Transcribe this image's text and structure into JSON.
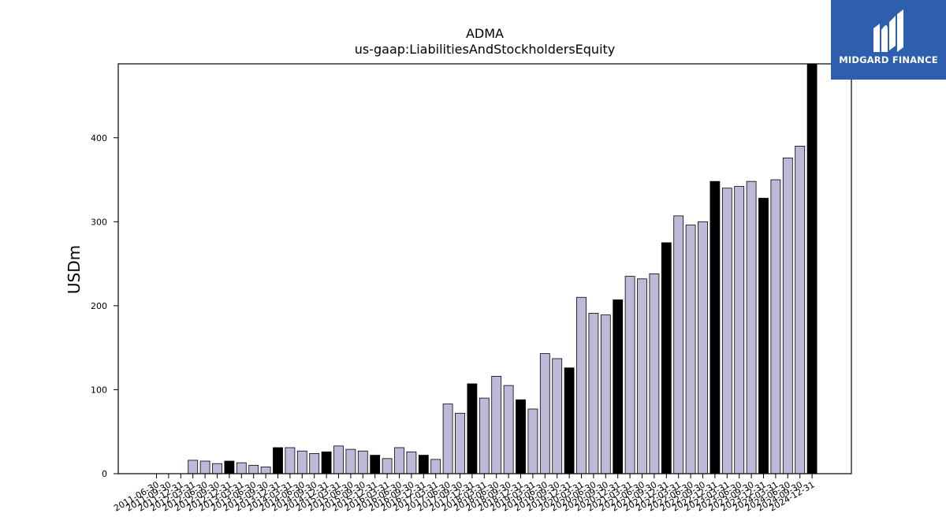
{
  "chart_data": {
    "type": "bar",
    "title": "ADMA",
    "subtitle": "us-gaap:LiabilitiesAndStockholdersEquity",
    "ylabel": "USDm",
    "xlabel": "",
    "ylim": [
      0,
      488
    ],
    "yticks": [
      0,
      100,
      200,
      300,
      400
    ],
    "grid": false,
    "legend": "none",
    "colors": {
      "bar": "#bcbad9",
      "highlight": "#000000",
      "edge": "#000000"
    },
    "categories": [
      "2011-06-30",
      "2011-09-30",
      "2011-12-31",
      "2012-03-31",
      "2012-06-30",
      "2012-09-30",
      "2012-12-31",
      "2013-03-31",
      "2013-06-30",
      "2013-09-30",
      "2013-12-31",
      "2014-03-31",
      "2014-06-30",
      "2014-09-30",
      "2014-12-31",
      "2015-03-31",
      "2015-06-30",
      "2015-09-30",
      "2015-12-31",
      "2016-03-31",
      "2016-06-30",
      "2016-09-30",
      "2016-12-31",
      "2017-03-31",
      "2017-06-30",
      "2017-09-30",
      "2017-12-31",
      "2018-03-31",
      "2018-06-30",
      "2018-09-30",
      "2018-12-31",
      "2019-03-31",
      "2019-06-30",
      "2019-09-30",
      "2019-12-31",
      "2020-03-31",
      "2020-06-30",
      "2020-09-30",
      "2020-12-31",
      "2021-03-31",
      "2021-06-30",
      "2021-09-30",
      "2021-12-31",
      "2022-03-31",
      "2022-06-30",
      "2022-09-30",
      "2022-12-31",
      "2023-03-31",
      "2023-06-30",
      "2023-09-30",
      "2023-12-31",
      "2024-03-31",
      "2024-06-30",
      "2024-09-30",
      "2024-12-31"
    ],
    "values": [
      0,
      0,
      0,
      16,
      15,
      12,
      15,
      13,
      10,
      8,
      31,
      31,
      27,
      24,
      26,
      33,
      29,
      27,
      22,
      18,
      31,
      26,
      22,
      17,
      83,
      72,
      107,
      90,
      116,
      105,
      88,
      77,
      143,
      137,
      126,
      210,
      191,
      189,
      207,
      235,
      232,
      238,
      275,
      307,
      296,
      300,
      348,
      340,
      342,
      348,
      328,
      350,
      376,
      390,
      488
    ],
    "highlight": [
      false,
      false,
      false,
      false,
      false,
      false,
      true,
      false,
      false,
      false,
      true,
      false,
      false,
      false,
      true,
      false,
      false,
      false,
      true,
      false,
      false,
      false,
      true,
      false,
      false,
      false,
      true,
      false,
      false,
      false,
      true,
      false,
      false,
      false,
      true,
      false,
      false,
      false,
      true,
      false,
      false,
      false,
      true,
      false,
      false,
      false,
      true,
      false,
      false,
      false,
      true,
      false,
      false,
      false,
      true
    ]
  },
  "logo": {
    "text": "MIDGARD FINANCE"
  }
}
